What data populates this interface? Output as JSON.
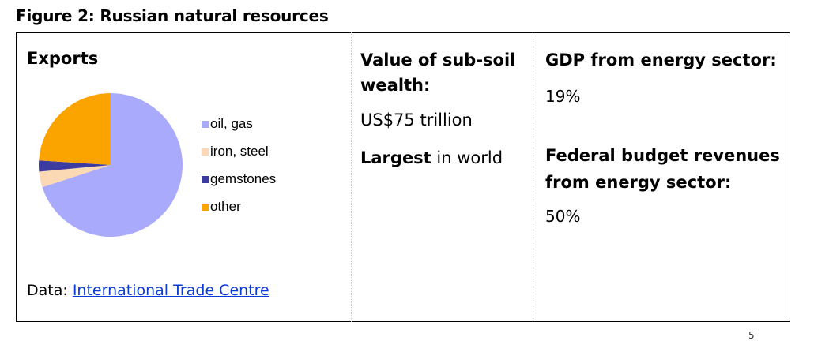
{
  "figure_title": "Figure 2: Russian natural resources",
  "exports": {
    "title": "Exports",
    "data_prefix": "Data: ",
    "data_link": "International Trade Centre"
  },
  "chart_data": {
    "type": "pie",
    "title": "Exports",
    "categories": [
      "oil, gas",
      "iron, steel",
      "gemstones",
      "other"
    ],
    "values": [
      70,
      3.5,
      2.5,
      24
    ],
    "colors": [
      "#aaaafc",
      "#fcd9b5",
      "#3c3ca0",
      "#fba400"
    ],
    "start_angle_deg": 0,
    "direction": "clockwise",
    "legend_position": "right"
  },
  "subsoil": {
    "heading": "Value of sub-soil wealth:",
    "value": "US$75 trillion",
    "largest_bold": "Largest",
    "largest_rest": " in world"
  },
  "energy": {
    "gdp_heading": "GDP from energy sector:",
    "gdp_value": "19%",
    "budget_heading": "Federal budget revenues from energy sector:",
    "budget_value": "50%"
  },
  "page_mark": "5"
}
